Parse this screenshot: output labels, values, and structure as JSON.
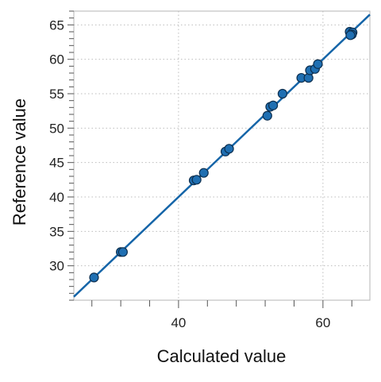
{
  "chart_data": {
    "type": "scatter",
    "xlabel": "Calculated value",
    "ylabel": "Reference value",
    "xlim": [
      25.5,
      66.5
    ],
    "ylim": [
      25.0,
      67.0
    ],
    "x_ticks": [
      40,
      60
    ],
    "y_ticks": [
      30,
      35,
      40,
      45,
      50,
      55,
      60,
      65
    ],
    "grid": true,
    "point_color": "#1f6fb2",
    "line_color": "#1565a8",
    "fit_line": {
      "slope": 1.0,
      "intercept": 0.0
    },
    "points": [
      {
        "x": 28.3,
        "y": 28.3
      },
      {
        "x": 32.0,
        "y": 32.0
      },
      {
        "x": 32.3,
        "y": 32.0
      },
      {
        "x": 42.1,
        "y": 42.4
      },
      {
        "x": 42.5,
        "y": 42.5
      },
      {
        "x": 43.5,
        "y": 43.5
      },
      {
        "x": 46.5,
        "y": 46.6
      },
      {
        "x": 47.0,
        "y": 47.0
      },
      {
        "x": 52.3,
        "y": 51.8
      },
      {
        "x": 52.7,
        "y": 53.1
      },
      {
        "x": 53.1,
        "y": 53.3
      },
      {
        "x": 54.4,
        "y": 55.0
      },
      {
        "x": 57.0,
        "y": 57.3
      },
      {
        "x": 58.0,
        "y": 57.3
      },
      {
        "x": 58.2,
        "y": 58.4
      },
      {
        "x": 58.9,
        "y": 58.6
      },
      {
        "x": 59.3,
        "y": 59.3
      },
      {
        "x": 63.7,
        "y": 64.0
      },
      {
        "x": 64.1,
        "y": 63.9
      },
      {
        "x": 64.0,
        "y": 63.6
      },
      {
        "x": 63.8,
        "y": 63.5
      }
    ]
  }
}
